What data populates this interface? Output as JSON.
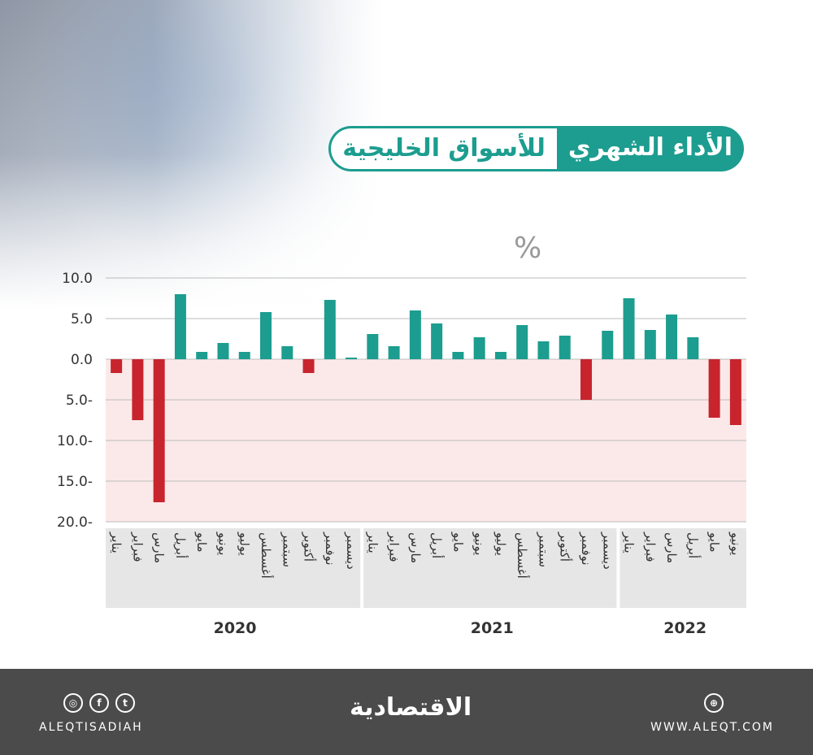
{
  "header": {
    "title_part1": "الأداء الشهري",
    "title_part2": "للأسواق الخليجية"
  },
  "chart_data": {
    "type": "bar",
    "title": "الأداء الشهري للأسواق الخليجية",
    "ylabel": "%",
    "ylim": [
      -20,
      10
    ],
    "yticks": [
      10,
      5,
      0,
      -5,
      -10,
      -15,
      -20
    ],
    "ytick_labels": [
      "10.0",
      "5.0",
      "0.0",
      "5.0-",
      "10.0-",
      "15.0-",
      "20.0-"
    ],
    "grid": true,
    "colors": {
      "positive": "#1c9d8f",
      "negative": "#c8242e",
      "negative_bg": "#fbe9e9",
      "year_bg": "#e6e6e6"
    },
    "categories": [
      "يناير",
      "فبراير",
      "مارس",
      "أبريل",
      "مايو",
      "يونيو",
      "يوليو",
      "أغسطس",
      "سبتمبر",
      "أكتوبر",
      "نوفمبر",
      "ديسمبر",
      "يناير",
      "فبراير",
      "مارس",
      "أبريل",
      "مايو",
      "يونيو",
      "يوليو",
      "أغسطس",
      "سبتمبر",
      "أكتوبر",
      "نوفمبر",
      "ديسمبر",
      "يناير",
      "فبراير",
      "مارس",
      "أبريل",
      "مايو",
      "يونيو"
    ],
    "years": [
      {
        "label": "2020",
        "months": 12
      },
      {
        "label": "2021",
        "months": 12
      },
      {
        "label": "2022",
        "months": 6
      }
    ],
    "values": [
      -1.7,
      -7.5,
      -17.6,
      8.0,
      0.9,
      2.0,
      0.9,
      5.8,
      1.6,
      -1.7,
      7.3,
      0.2,
      3.1,
      1.6,
      6.0,
      4.4,
      0.9,
      2.7,
      0.9,
      4.2,
      2.2,
      2.9,
      -5.0,
      3.5,
      7.5,
      3.6,
      5.5,
      2.7,
      -7.2,
      -8.1
    ]
  },
  "footer": {
    "handle": "ALEQTISADIAH",
    "logo": "الاقتصادية",
    "website": "WWW.ALEQT.COM",
    "social_icons": [
      "instagram-icon",
      "facebook-icon",
      "twitter-icon"
    ],
    "web_icon": "dribbble-icon"
  }
}
